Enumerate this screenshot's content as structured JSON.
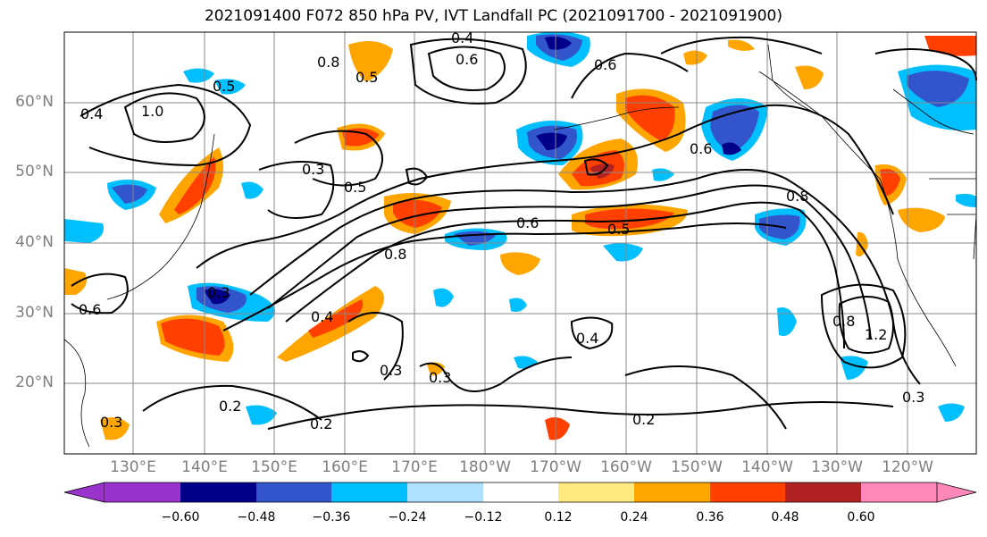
{
  "title": "2021091400 F072 850 hPa PV, IVT Landfall PC (2021091700 - 2021091900)",
  "lat_labels": [
    "60°N",
    "50°N",
    "40°N",
    "30°N",
    "20°N"
  ],
  "lon_labels": [
    "130°E",
    "140°E",
    "150°E",
    "160°E",
    "170°E",
    "180°W",
    "170°W",
    "160°W",
    "150°W",
    "140°W",
    "130°W",
    "120°W"
  ],
  "colorbar": {
    "ticks": [
      "−0.60",
      "−0.48",
      "−0.36",
      "−0.24",
      "−0.12",
      "0.12",
      "0.24",
      "0.36",
      "0.48",
      "0.60"
    ],
    "colors": [
      "#9933cc",
      "#00008b",
      "#3355cc",
      "#00bfff",
      "#b0e2ff",
      "#ffffff",
      "#ffea80",
      "#ffa500",
      "#ff4000",
      "#b22222",
      "#ff88bb"
    ]
  },
  "contour_labels": [
    "0.4",
    "0.8",
    "0.5",
    "0.6",
    "1.0",
    "0.4",
    "0.3",
    "0.5",
    "0.6",
    "0.8",
    "0.5",
    "0.6",
    "0.4",
    "0.3",
    "0.2",
    "0.2",
    "0.3",
    "0.3",
    "0.4",
    "0.8",
    "1.2",
    "0.2",
    "0.3",
    "0.6",
    "0.8",
    "0.5",
    "0.3",
    "0.6"
  ]
}
